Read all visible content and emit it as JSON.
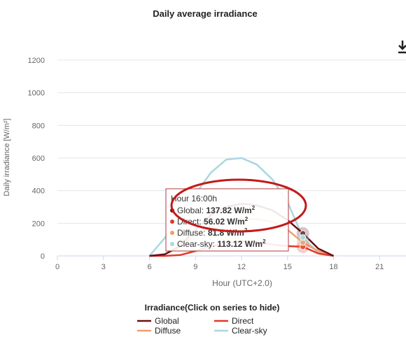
{
  "chart_data": {
    "type": "line",
    "title": "Daily average irradiance",
    "xlabel": "Hour (UTC+2.0)",
    "ylabel": "Daily irradiance [W/m²]",
    "xlim": [
      0,
      24
    ],
    "ylim": [
      0,
      1200
    ],
    "x_ticks": [
      "0",
      "3",
      "6",
      "9",
      "12",
      "15",
      "18",
      "21"
    ],
    "y_ticks": [
      "0",
      "200",
      "400",
      "600",
      "800",
      "1000",
      "1200"
    ],
    "grid": "horizontal",
    "legend_position": "bottom",
    "legend_title": "Irradiance(Click on series to hide)",
    "x": [
      6,
      7,
      8,
      9,
      10,
      11,
      12,
      13,
      14,
      15,
      16,
      17,
      18
    ],
    "series": [
      {
        "name": "Global",
        "color": "#6b0f14",
        "values": [
          0,
          10,
          60,
          160,
          250,
          300,
          320,
          310,
          280,
          220,
          137.82,
          45,
          0
        ]
      },
      {
        "name": "Direct",
        "color": "#e0392e",
        "values": [
          0,
          0,
          5,
          30,
          60,
          80,
          90,
          85,
          70,
          60,
          56.02,
          15,
          0
        ]
      },
      {
        "name": "Diffuse",
        "color": "#f39c6b",
        "values": [
          0,
          10,
          55,
          130,
          190,
          220,
          230,
          225,
          210,
          160,
          81.8,
          30,
          0
        ]
      },
      {
        "name": "Clear-sky",
        "color": "#a8d8e0",
        "values": [
          0,
          110,
          250,
          380,
          510,
          590,
          600,
          560,
          470,
          330,
          113.12,
          20,
          0
        ]
      }
    ],
    "tooltip": {
      "header": "Hour 16:00h",
      "items": [
        {
          "label": "Global:",
          "value": "137.82 W/m",
          "color": "#6b0f14"
        },
        {
          "label": "Direct:",
          "value": "56.02 W/m",
          "color": "#e0392e"
        },
        {
          "label": "Diffuse:",
          "value": "81.8 W/m",
          "color": "#f39c6b"
        },
        {
          "label": "Clear-sky:",
          "value": "113.12 W/m",
          "color": "#a8d8e0"
        }
      ],
      "superscript": "2",
      "hover_x": 16
    }
  },
  "download_icon": "download-icon"
}
